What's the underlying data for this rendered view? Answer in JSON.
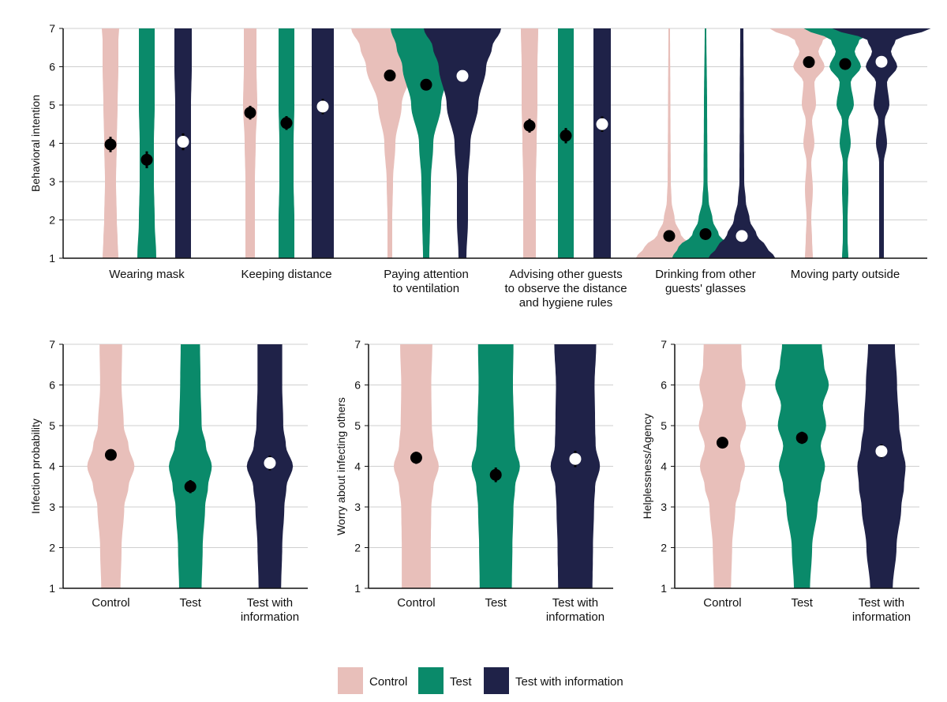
{
  "colors": {
    "Control": "#e8bfba",
    "Test": "#0a8a6a",
    "Test with information": "#1f2248",
    "grid": "#cfcfcf",
    "axis": "#111111"
  },
  "legend": [
    "Control",
    "Test",
    "Test with information"
  ],
  "chart_data": [
    {
      "id": "behavioral",
      "type": "violin",
      "ylabel": "Behavioral intention",
      "ylim": [
        1,
        7
      ],
      "yticks": [
        "1",
        "2",
        "3",
        "4",
        "5",
        "6",
        "7"
      ],
      "grid": true,
      "groups": [
        "Control",
        "Test",
        "Test with information"
      ],
      "categories": [
        "Wearing mask",
        "Keeping distance",
        "Paying attention\nto ventilation",
        "Advising other guests\nto observe the distance\nand hygiene rules",
        "Drinking from other\nguests' glasses",
        "Moving party outside"
      ],
      "series": [
        {
          "name": "Control",
          "means": [
            3.97,
            4.8,
            5.77,
            4.46,
            1.58,
            6.12
          ],
          "errors": [
            0.2,
            0.18,
            0.12,
            0.18,
            0.1,
            0.12
          ]
        },
        {
          "name": "Test",
          "means": [
            3.57,
            4.53,
            5.53,
            4.2,
            1.63,
            6.07
          ],
          "errors": [
            0.22,
            0.18,
            0.14,
            0.2,
            0.1,
            0.12
          ]
        },
        {
          "name": "Test with information",
          "means": [
            4.04,
            4.96,
            5.76,
            4.5,
            1.58,
            6.13
          ],
          "errors": [
            0.22,
            0.2,
            0.12,
            0.2,
            0.1,
            0.1
          ]
        }
      ]
    },
    {
      "id": "infection",
      "type": "violin",
      "ylabel": "Infection probability",
      "ylim": [
        1,
        7
      ],
      "yticks": [
        "1",
        "2",
        "3",
        "4",
        "5",
        "6",
        "7"
      ],
      "grid": true,
      "categories": [
        "Control",
        "Test",
        "Test with\ninformation"
      ],
      "series": [
        {
          "name": "mean",
          "means": [
            4.28,
            3.5,
            4.08
          ],
          "errors": [
            0.12,
            0.16,
            0.18
          ]
        }
      ]
    },
    {
      "id": "worry",
      "type": "violin",
      "ylabel": "Worry about infecting others",
      "ylim": [
        1,
        7
      ],
      "yticks": [
        "1",
        "2",
        "3",
        "4",
        "5",
        "6",
        "7"
      ],
      "grid": true,
      "categories": [
        "Control",
        "Test",
        "Test with\ninformation"
      ],
      "series": [
        {
          "name": "mean",
          "means": [
            4.21,
            3.79,
            4.18
          ],
          "errors": [
            0.15,
            0.18,
            0.2
          ]
        }
      ]
    },
    {
      "id": "helplessness",
      "type": "violin",
      "ylabel": "Helplessness/Agency",
      "ylim": [
        1,
        7
      ],
      "yticks": [
        "1",
        "2",
        "3",
        "4",
        "5",
        "6",
        "7"
      ],
      "grid": true,
      "categories": [
        "Control",
        "Test",
        "Test with\ninformation"
      ],
      "series": [
        {
          "name": "mean",
          "means": [
            4.58,
            4.7,
            4.37
          ],
          "errors": [
            0.14,
            0.15,
            0.17
          ]
        }
      ]
    }
  ]
}
